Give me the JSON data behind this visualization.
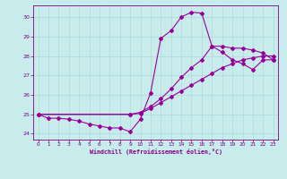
{
  "xlabel": "Windchill (Refroidissement éolien,°C)",
  "background_color": "#c8ecec",
  "grid_color": "#b0d8d8",
  "line_color": "#990099",
  "xlim": [
    -0.5,
    23.5
  ],
  "ylim": [
    23.7,
    30.6
  ],
  "yticks": [
    24,
    25,
    26,
    27,
    28,
    29,
    30
  ],
  "xticks": [
    0,
    1,
    2,
    3,
    4,
    5,
    6,
    7,
    8,
    9,
    10,
    11,
    12,
    13,
    14,
    15,
    16,
    17,
    18,
    19,
    20,
    21,
    22,
    23
  ],
  "curve1_x": [
    0,
    1,
    2,
    3,
    4,
    5,
    6,
    7,
    8,
    9,
    10,
    11,
    12,
    13,
    14,
    15,
    16,
    17,
    18,
    19,
    20,
    21,
    22,
    23
  ],
  "curve1_y": [
    25.0,
    24.8,
    24.8,
    24.75,
    24.65,
    24.5,
    24.4,
    24.3,
    24.3,
    24.1,
    24.75,
    26.1,
    28.9,
    29.3,
    30.0,
    30.25,
    30.2,
    28.5,
    28.2,
    27.8,
    27.6,
    27.3,
    27.8,
    27.8
  ],
  "curve2_x": [
    0,
    9,
    10,
    11,
    12,
    13,
    14,
    15,
    16,
    17,
    18,
    19,
    20,
    21,
    22,
    23
  ],
  "curve2_y": [
    25.0,
    25.0,
    25.05,
    25.3,
    25.6,
    25.9,
    26.2,
    26.5,
    26.8,
    27.1,
    27.4,
    27.6,
    27.8,
    27.9,
    28.0,
    28.0
  ],
  "curve3_x": [
    0,
    9,
    10,
    11,
    12,
    13,
    14,
    15,
    16,
    17,
    18,
    19,
    20,
    21,
    22,
    23
  ],
  "curve3_y": [
    25.0,
    25.0,
    25.1,
    25.4,
    25.8,
    26.3,
    26.9,
    27.4,
    27.8,
    28.5,
    28.5,
    28.4,
    28.4,
    28.3,
    28.15,
    27.8
  ]
}
